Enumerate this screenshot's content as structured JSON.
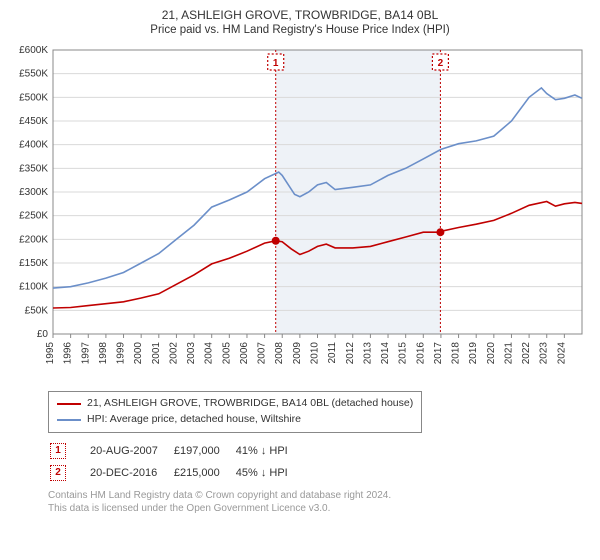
{
  "title": "21, ASHLEIGH GROVE, TROWBRIDGE, BA14 0BL",
  "subtitle": "Price paid vs. HM Land Registry's House Price Index (HPI)",
  "chart": {
    "type": "line",
    "background_color": "#ffffff",
    "grid_color": "#d9d9d9",
    "shaded_band_color": "#eef2f7",
    "axis_color": "#888888",
    "xlim": [
      1995,
      2025
    ],
    "ylim": [
      0,
      600000
    ],
    "ytick_step": 50000,
    "yticks": [
      "£0",
      "£50K",
      "£100K",
      "£150K",
      "£200K",
      "£250K",
      "£300K",
      "£350K",
      "£400K",
      "£450K",
      "£500K",
      "£550K",
      "£600K"
    ],
    "xticks": [
      1995,
      1996,
      1997,
      1998,
      1999,
      2000,
      2001,
      2002,
      2003,
      2004,
      2005,
      2006,
      2007,
      2008,
      2009,
      2010,
      2011,
      2012,
      2013,
      2014,
      2015,
      2016,
      2017,
      2018,
      2019,
      2020,
      2021,
      2022,
      2023,
      2024
    ],
    "tick_fontsize": 10,
    "shaded_band": {
      "from": 2007.63,
      "to": 2016.97
    },
    "series": [
      {
        "name": "property",
        "color": "#c00000",
        "line_width": 1.6,
        "points": [
          [
            1995,
            55000
          ],
          [
            1996,
            56000
          ],
          [
            1997,
            60000
          ],
          [
            1998,
            64000
          ],
          [
            1999,
            68000
          ],
          [
            2000,
            76000
          ],
          [
            2001,
            85000
          ],
          [
            2002,
            105000
          ],
          [
            2003,
            125000
          ],
          [
            2004,
            148000
          ],
          [
            2005,
            160000
          ],
          [
            2006,
            175000
          ],
          [
            2007,
            192000
          ],
          [
            2007.63,
            197000
          ],
          [
            2008,
            195000
          ],
          [
            2008.5,
            180000
          ],
          [
            2009,
            168000
          ],
          [
            2009.5,
            175000
          ],
          [
            2010,
            185000
          ],
          [
            2010.5,
            190000
          ],
          [
            2011,
            182000
          ],
          [
            2012,
            182000
          ],
          [
            2013,
            185000
          ],
          [
            2014,
            195000
          ],
          [
            2015,
            205000
          ],
          [
            2016,
            215000
          ],
          [
            2016.97,
            215000
          ],
          [
            2017,
            217000
          ],
          [
            2018,
            225000
          ],
          [
            2019,
            232000
          ],
          [
            2020,
            240000
          ],
          [
            2021,
            255000
          ],
          [
            2022,
            272000
          ],
          [
            2023,
            280000
          ],
          [
            2023.5,
            270000
          ],
          [
            2024,
            275000
          ],
          [
            2024.6,
            278000
          ],
          [
            2025,
            276000
          ]
        ]
      },
      {
        "name": "hpi",
        "color": "#6b8fc9",
        "line_width": 1.6,
        "points": [
          [
            1995,
            97000
          ],
          [
            1996,
            100000
          ],
          [
            1997,
            108000
          ],
          [
            1998,
            118000
          ],
          [
            1999,
            130000
          ],
          [
            2000,
            150000
          ],
          [
            2001,
            170000
          ],
          [
            2002,
            200000
          ],
          [
            2003,
            230000
          ],
          [
            2004,
            268000
          ],
          [
            2005,
            283000
          ],
          [
            2006,
            300000
          ],
          [
            2007,
            328000
          ],
          [
            2007.8,
            342000
          ],
          [
            2008,
            335000
          ],
          [
            2008.7,
            295000
          ],
          [
            2009,
            290000
          ],
          [
            2009.5,
            300000
          ],
          [
            2010,
            315000
          ],
          [
            2010.5,
            320000
          ],
          [
            2011,
            305000
          ],
          [
            2012,
            310000
          ],
          [
            2013,
            315000
          ],
          [
            2014,
            335000
          ],
          [
            2015,
            350000
          ],
          [
            2016,
            370000
          ],
          [
            2017,
            390000
          ],
          [
            2018,
            402000
          ],
          [
            2019,
            408000
          ],
          [
            2020,
            418000
          ],
          [
            2021,
            450000
          ],
          [
            2022,
            500000
          ],
          [
            2022.7,
            520000
          ],
          [
            2023,
            508000
          ],
          [
            2023.5,
            495000
          ],
          [
            2024,
            498000
          ],
          [
            2024.6,
            505000
          ],
          [
            2025,
            498000
          ]
        ]
      }
    ],
    "markers": [
      {
        "id": "1",
        "x": 2007.63,
        "y": 197000
      },
      {
        "id": "2",
        "x": 2016.97,
        "y": 215000
      }
    ]
  },
  "legend": {
    "series1": "21, ASHLEIGH GROVE, TROWBRIDGE, BA14 0BL (detached house)",
    "series2": "HPI: Average price, detached house, Wiltshire"
  },
  "transactions": [
    {
      "id": "1",
      "date": "20-AUG-2007",
      "price": "£197,000",
      "ratio": "41% ↓ HPI"
    },
    {
      "id": "2",
      "date": "20-DEC-2016",
      "price": "£215,000",
      "ratio": "45% ↓ HPI"
    }
  ],
  "footnote_line1": "Contains HM Land Registry data © Crown copyright and database right 2024.",
  "footnote_line2": "This data is licensed under the Open Government Licence v3.0."
}
